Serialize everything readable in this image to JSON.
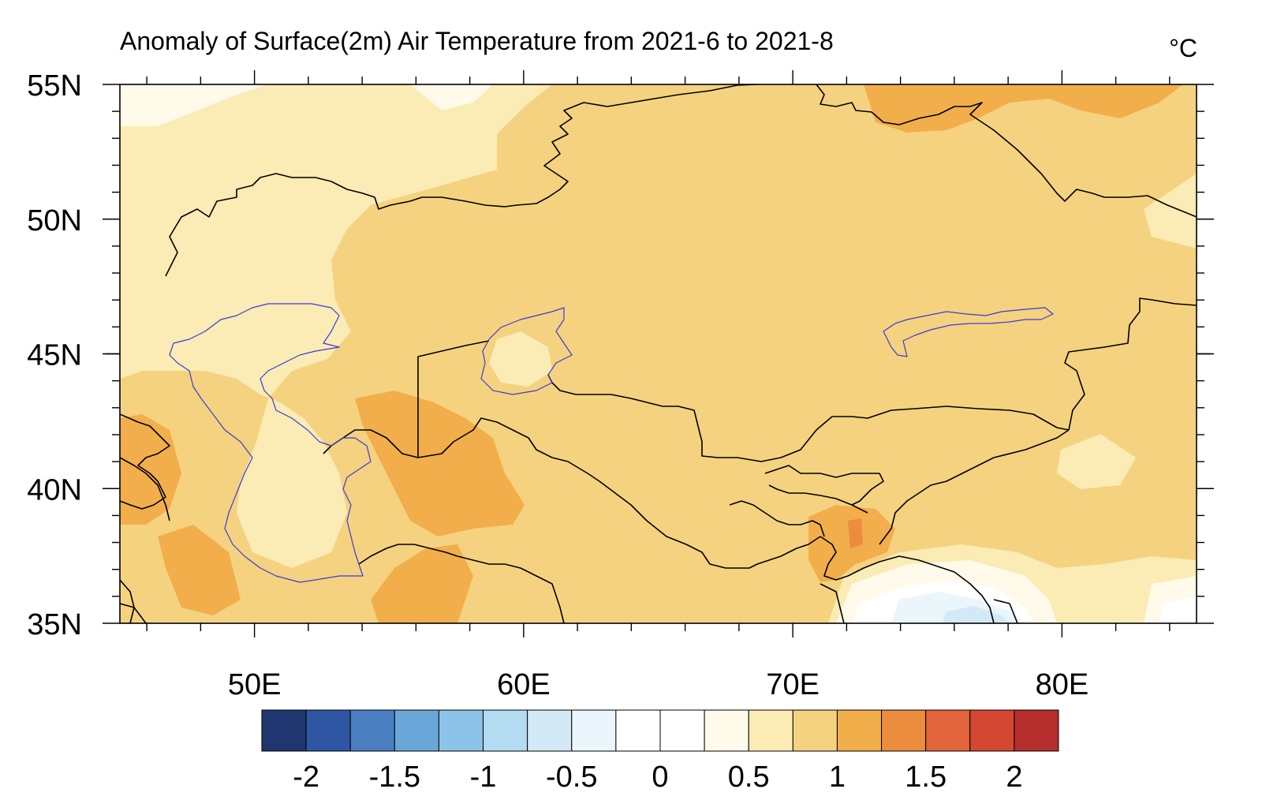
{
  "header": {
    "title": "Anomaly of Surface(2m) Air Temperature from 2021-6 to 2021-8",
    "units": "°C"
  },
  "map": {
    "lon_range": [
      45,
      85
    ],
    "lat_range": [
      35,
      55
    ],
    "lon_ticks": [
      {
        "value": 50,
        "label": "50E"
      },
      {
        "value": 60,
        "label": "60E"
      },
      {
        "value": 70,
        "label": "70E"
      },
      {
        "value": 80,
        "label": "80E"
      }
    ],
    "lat_ticks": [
      {
        "value": 55,
        "label": "55N"
      },
      {
        "value": 50,
        "label": "50N"
      },
      {
        "value": 45,
        "label": "45N"
      },
      {
        "value": 40,
        "label": "40N"
      },
      {
        "value": 35,
        "label": "35N"
      }
    ],
    "colors": {
      "border": "#000000",
      "water": "#3b3bd6"
    }
  },
  "colorbar": {
    "colors": [
      "#1f3670",
      "#2e56a3",
      "#4a7fc1",
      "#6aa6d8",
      "#8dc3e8",
      "#b3dcf3",
      "#d3e9f6",
      "#ebf5fc",
      "#ffffff",
      "#ffffff",
      "#fffaea",
      "#fbebb4",
      "#f5d27f",
      "#f2ae4b",
      "#eb8c3e",
      "#e2643a",
      "#d34733",
      "#b62d2e"
    ],
    "labels": [
      {
        "index": 1,
        "label": "-2"
      },
      {
        "index": 3,
        "label": "-1.5"
      },
      {
        "index": 5,
        "label": "-1"
      },
      {
        "index": 7,
        "label": "-0.5"
      },
      {
        "index": 9,
        "label": "0"
      },
      {
        "index": 11,
        "label": "0.5"
      },
      {
        "index": 13,
        "label": "1"
      },
      {
        "index": 15,
        "label": "1.5"
      },
      {
        "index": 17,
        "label": "2"
      }
    ]
  }
}
